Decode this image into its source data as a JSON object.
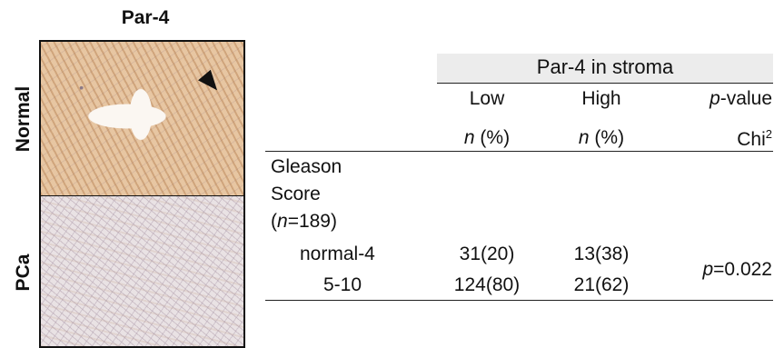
{
  "figure": {
    "title": "Par-4",
    "rows": [
      {
        "label": "Normal"
      },
      {
        "label": "PCa"
      }
    ]
  },
  "table": {
    "group_header": "Par-4 in stroma",
    "columns": {
      "low": "Low",
      "high": "High",
      "pvalue_italic": "p",
      "pvalue_rest": "-value"
    },
    "subheaders": {
      "n_italic": "n",
      "pct": " (%)",
      "chi": "Chi",
      "chi_sup": "2"
    },
    "variable": {
      "line1": "Gleason",
      "line2": "Score",
      "n_open": "(",
      "n_italic": "n",
      "n_rest": "=189)"
    },
    "rows": [
      {
        "label": "normal-4",
        "low": "31(20)",
        "high": "13(38)"
      },
      {
        "label": "5-10",
        "low": "124(80)",
        "high": "21(62)"
      }
    ],
    "pvalue": {
      "italic": "p",
      "rest": "=0.022"
    }
  }
}
